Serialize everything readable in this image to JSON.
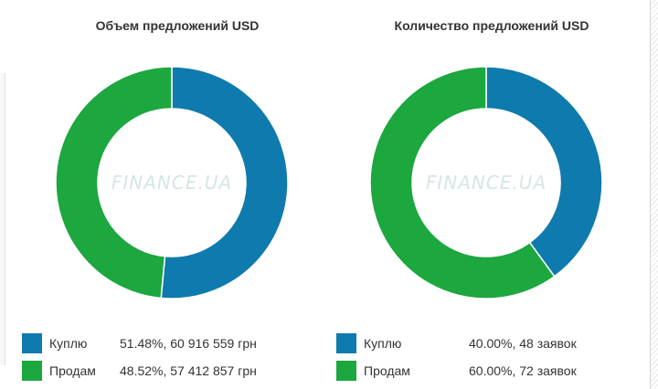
{
  "colors": {
    "buy": "#0f7aad",
    "sell": "#1ca73f"
  },
  "watermark": "FINANCE.UA",
  "chart_data": [
    {
      "type": "pie",
      "title": "Объем предложений USD",
      "categories": [
        "Куплю",
        "Продам"
      ],
      "values": [
        51.48,
        48.52
      ],
      "value_labels": [
        "51.48%, 60 916 559 грн",
        "48.52%, 57 412 857 грн"
      ],
      "legend": "bottom"
    },
    {
      "type": "pie",
      "title": "Количество предложений USD",
      "categories": [
        "Куплю",
        "Продам"
      ],
      "values": [
        40.0,
        60.0
      ],
      "value_labels": [
        "40.00%, 48 заявок",
        "60.00%, 72 заявок"
      ],
      "legend": "bottom"
    }
  ]
}
